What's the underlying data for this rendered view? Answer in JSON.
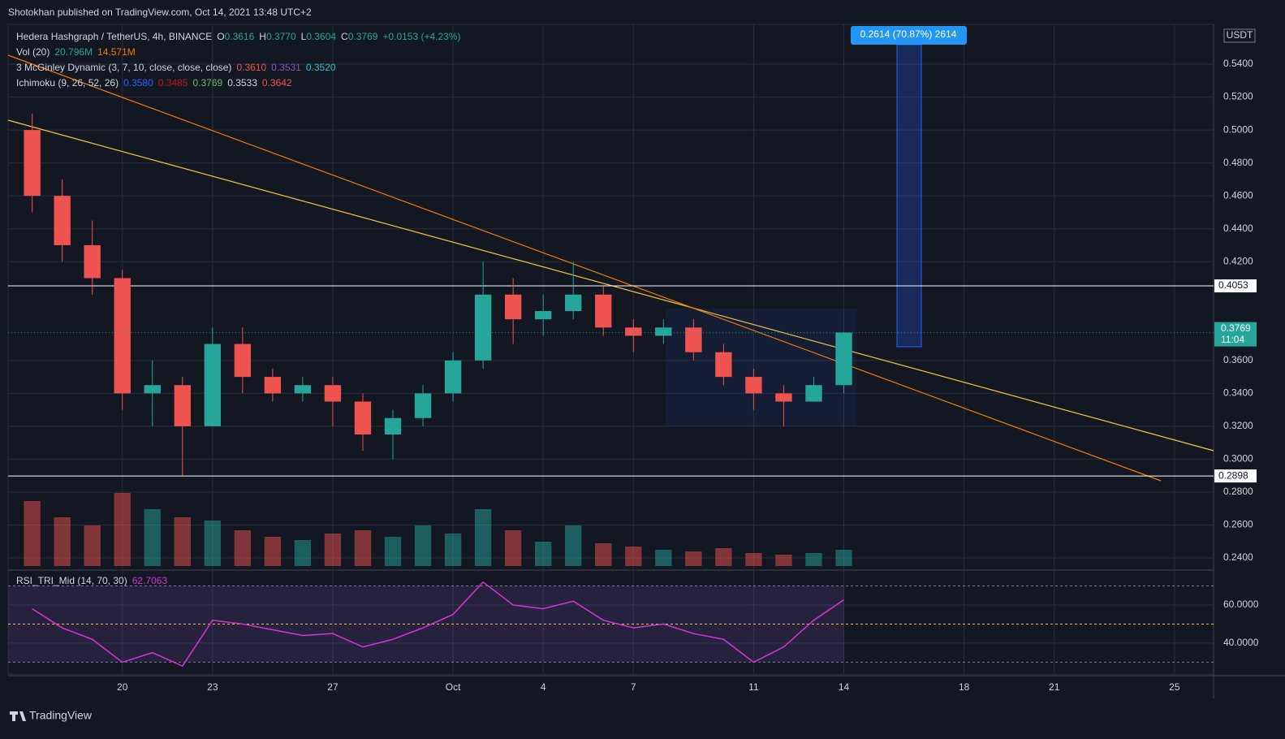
{
  "header": "Shotokhan published on TradingView.com, Oct 14, 2021 13:48 UTC+2",
  "footer": "TradingView",
  "chart_data": {
    "type": "candlestick",
    "title": "Hedera Hashgraph / TetherUS, 4h, BINANCE",
    "ohlc_legend": [
      "O",
      "0.3616",
      "H",
      "0.3770",
      "L",
      "0.3604",
      "C",
      "0.3769",
      "+0.0153 (+4.23%)"
    ],
    "indicators": [
      {
        "name": "Vol (20)",
        "values": [
          "20.796M",
          "14.571M"
        ]
      },
      {
        "name": "3 McGinley Dynamic (3, 7, 10, close, close, close)",
        "values": [
          "0.3610",
          "0.3531",
          "0.3520"
        ]
      },
      {
        "name": "Ichimoku (9, 26, 52, 26)",
        "values": [
          "0.3580",
          "0.3485",
          "0.3769",
          "0.3533",
          "0.3642"
        ]
      }
    ],
    "currency": "USDT",
    "measure_label": "0.2614 (70.87%) 2614",
    "x": [
      -3,
      -2,
      -1,
      0,
      1,
      2,
      3,
      4,
      5,
      6,
      7,
      8,
      9,
      10,
      11,
      12,
      13,
      14,
      15,
      16,
      17,
      18,
      19,
      20,
      21,
      22,
      23,
      24
    ],
    "open": [
      0.5,
      0.46,
      0.43,
      0.41,
      0.34,
      0.345,
      0.32,
      0.37,
      0.35,
      0.34,
      0.345,
      0.335,
      0.315,
      0.325,
      0.34,
      0.36,
      0.4,
      0.385,
      0.39,
      0.4,
      0.38,
      0.375,
      0.38,
      0.365,
      0.35,
      0.34,
      0.335,
      0.345
    ],
    "high": [
      0.51,
      0.47,
      0.445,
      0.415,
      0.36,
      0.35,
      0.38,
      0.38,
      0.355,
      0.35,
      0.35,
      0.34,
      0.33,
      0.345,
      0.365,
      0.42,
      0.41,
      0.4,
      0.42,
      0.405,
      0.385,
      0.385,
      0.385,
      0.37,
      0.355,
      0.345,
      0.35,
      0.377
    ],
    "low": [
      0.45,
      0.42,
      0.4,
      0.33,
      0.32,
      0.29,
      0.32,
      0.34,
      0.335,
      0.335,
      0.32,
      0.305,
      0.3,
      0.32,
      0.335,
      0.355,
      0.37,
      0.375,
      0.385,
      0.375,
      0.365,
      0.37,
      0.36,
      0.345,
      0.33,
      0.32,
      0.335,
      0.34
    ],
    "close": [
      0.46,
      0.43,
      0.41,
      0.34,
      0.345,
      0.32,
      0.37,
      0.35,
      0.34,
      0.345,
      0.335,
      0.315,
      0.325,
      0.34,
      0.36,
      0.4,
      0.385,
      0.39,
      0.4,
      0.38,
      0.375,
      0.38,
      0.365,
      0.35,
      0.34,
      0.335,
      0.345,
      0.3769
    ],
    "volume": [
      40,
      30,
      25,
      45,
      35,
      30,
      28,
      22,
      18,
      16,
      20,
      22,
      18,
      25,
      20,
      35,
      22,
      15,
      25,
      14,
      12,
      10,
      9,
      11,
      8,
      7,
      8,
      10
    ],
    "up_color": "#26a69a",
    "down_color": "#ef5350",
    "xlim": [
      -3.8,
      36.3
    ],
    "xticks": [
      {
        "value": 0,
        "label": "20"
      },
      {
        "value": 3,
        "label": "23"
      },
      {
        "value": 7,
        "label": "27"
      },
      {
        "value": 11,
        "label": "Oct"
      },
      {
        "value": 14,
        "label": "4"
      },
      {
        "value": 17,
        "label": "7"
      },
      {
        "value": 21,
        "label": "11"
      },
      {
        "value": 24,
        "label": "14"
      },
      {
        "value": 28,
        "label": "18"
      },
      {
        "value": 31,
        "label": "21"
      },
      {
        "value": 35,
        "label": "25"
      }
    ],
    "ylim": [
      0.2336,
      0.5642
    ],
    "yticks": [
      {
        "value": 0.24,
        "label": "0.2400"
      },
      {
        "value": 0.26,
        "label": "0.2600"
      },
      {
        "value": 0.28,
        "label": "0.2800"
      },
      {
        "value": 0.3,
        "label": "0.3000"
      },
      {
        "value": 0.32,
        "label": "0.3200"
      },
      {
        "value": 0.34,
        "label": "0.3400"
      },
      {
        "value": 0.36,
        "label": "0.3600"
      },
      {
        "value": 0.42,
        "label": "0.4200"
      },
      {
        "value": 0.44,
        "label": "0.4400"
      },
      {
        "value": 0.46,
        "label": "0.4600"
      },
      {
        "value": 0.48,
        "label": "0.4800"
      },
      {
        "value": 0.5,
        "label": "0.5000"
      },
      {
        "value": 0.52,
        "label": "0.5200"
      },
      {
        "value": 0.54,
        "label": "0.5400"
      }
    ],
    "levels": [
      {
        "value": 0.4053,
        "label": "0.4053"
      },
      {
        "value": 0.2898,
        "label": "0.2898"
      }
    ],
    "last_price": {
      "value": 0.3769,
      "label": "0.3769",
      "countdown": "11:04"
    },
    "grid": true,
    "rsi": {
      "name": "RSI_TRI_Mid (14, 70, 30)",
      "last": "62.7063",
      "color": "#d633d6",
      "values": [
        58,
        48,
        42,
        30,
        35,
        28,
        52,
        50,
        47,
        44,
        45,
        38,
        42,
        48,
        55,
        72,
        60,
        58,
        62,
        52,
        48,
        50,
        45,
        42,
        30,
        38,
        52,
        62.7063
      ],
      "ylim": [
        23.8,
        77
      ],
      "yticks": [
        {
          "value": 40,
          "label": "40.0000"
        },
        {
          "value": 60,
          "label": "60.0000"
        }
      ],
      "bands": [
        70,
        50,
        30
      ]
    }
  }
}
